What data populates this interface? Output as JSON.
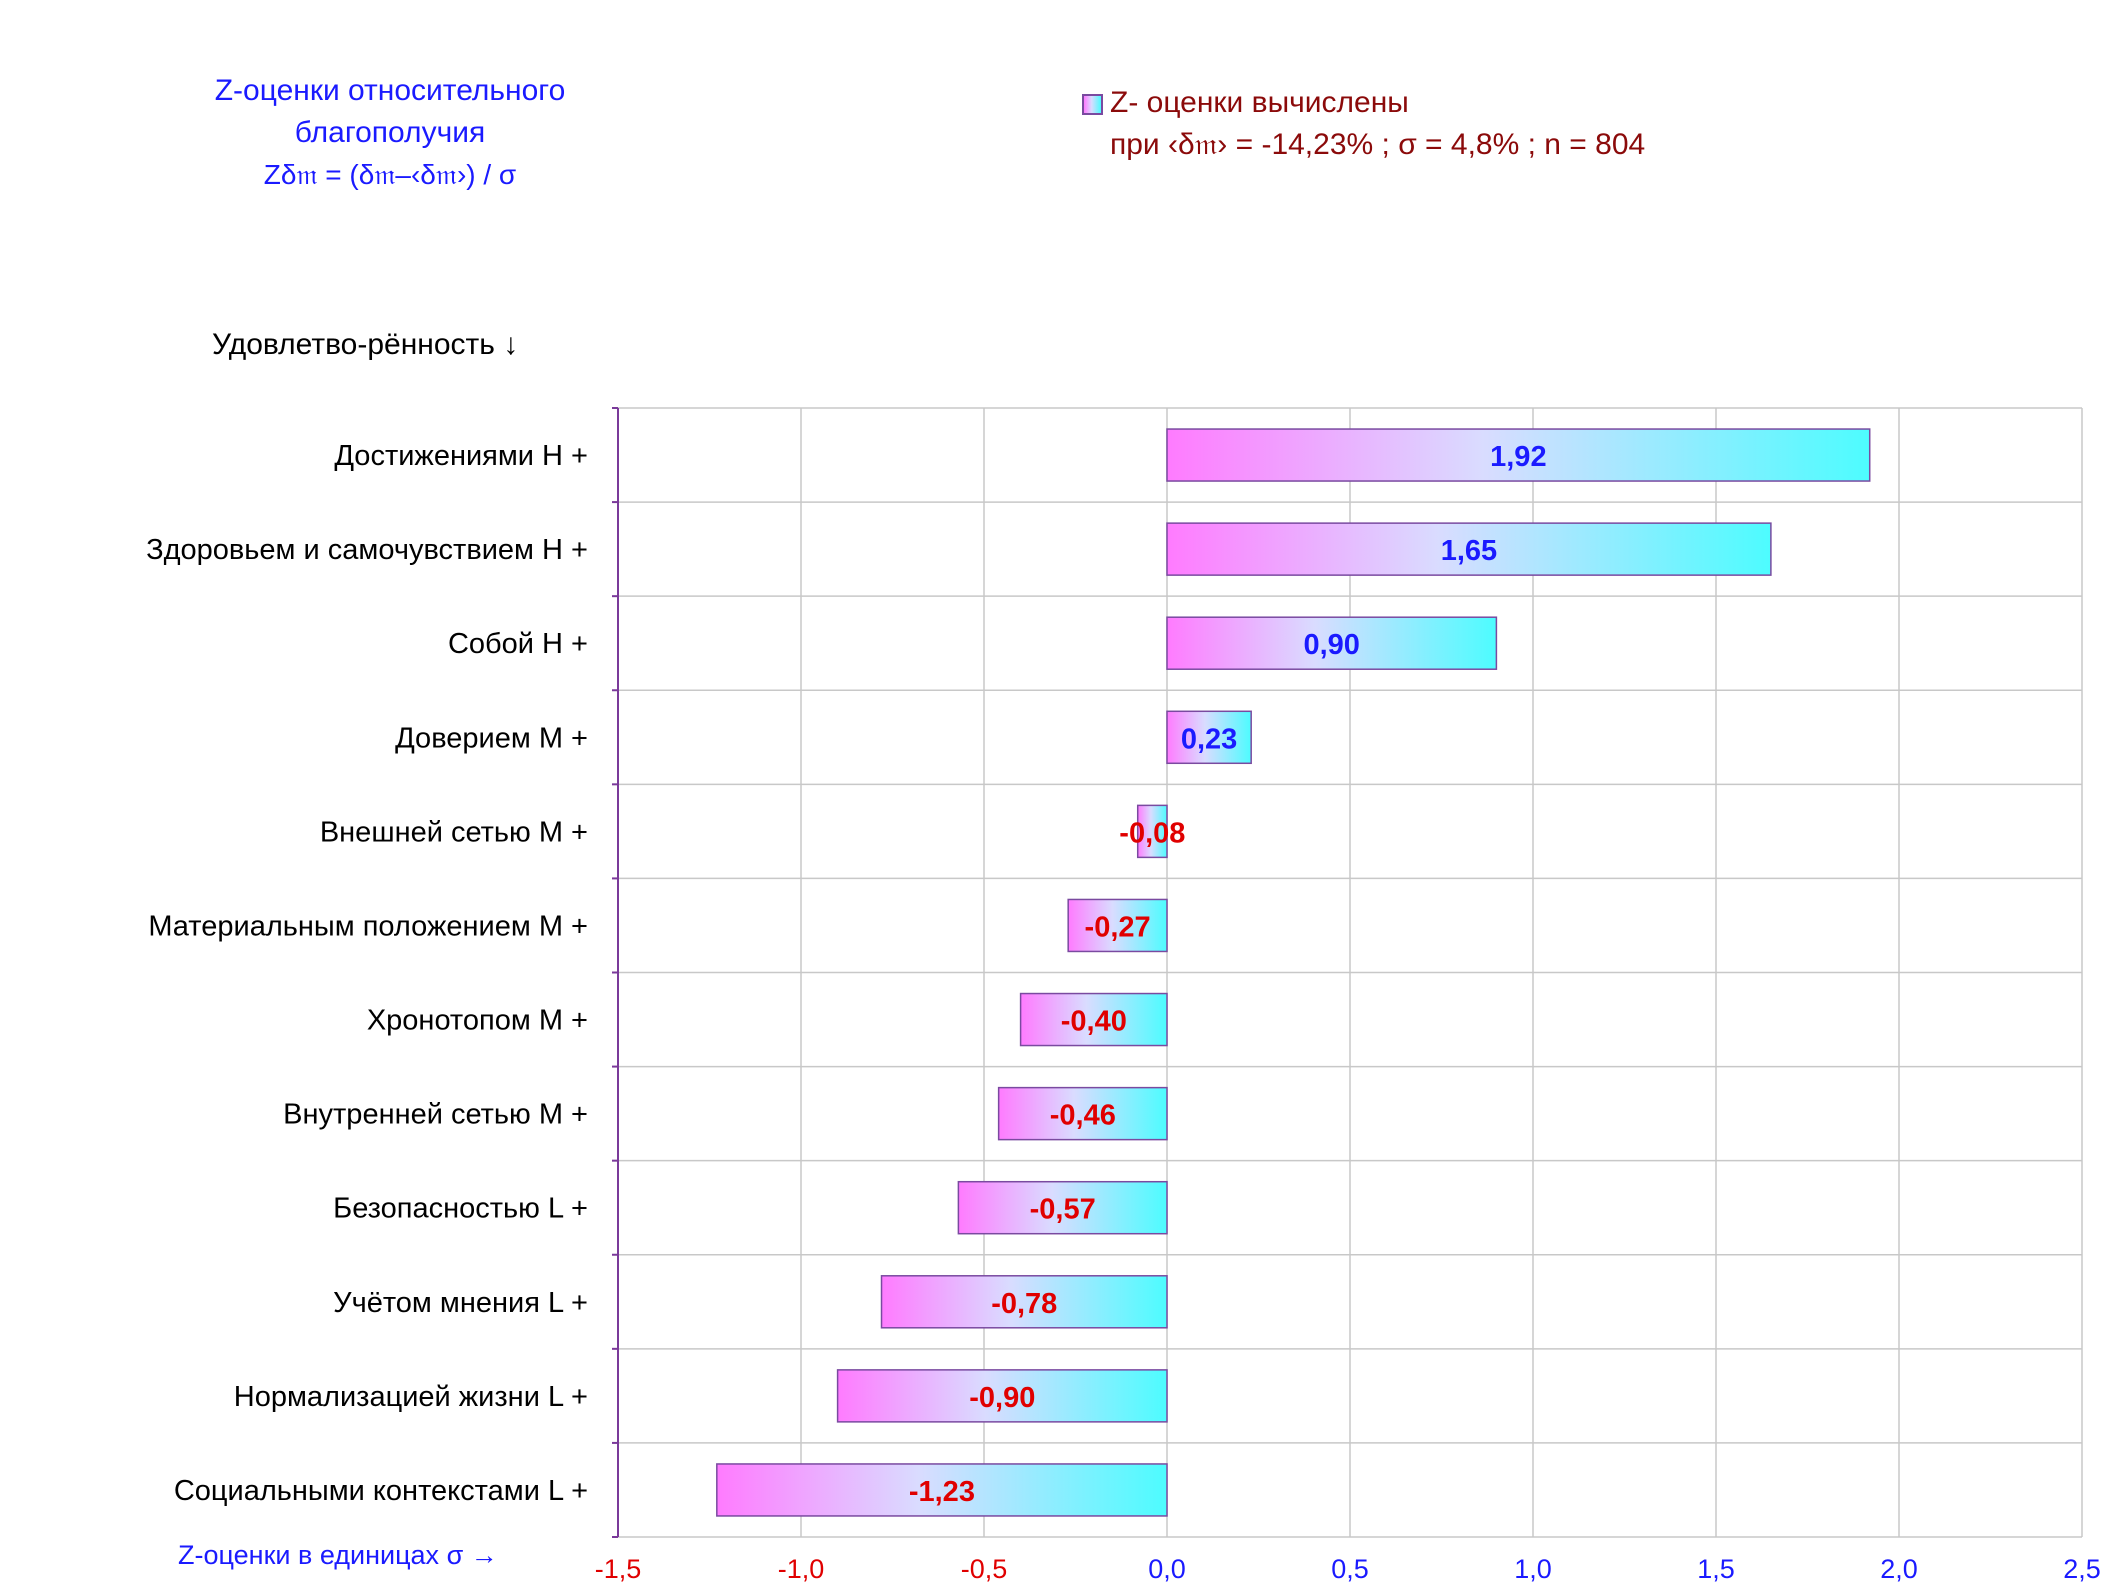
{
  "title": {
    "line1": "Z-оценки  относительного",
    "line2": "благополучия",
    "formula": "Zδ𝔪 = (δ𝔪–‹δ𝔪›) / σ"
  },
  "legend": {
    "line1": "Z- оценки вычислены",
    "line2": "при ‹δ𝔪› = -14,23% ; σ = 4,8% ; n = 804"
  },
  "colors": {
    "gradient_left": "#ff7bff",
    "gradient_mid": "#d9dcff",
    "gradient_right": "#4dfcff",
    "bar_border": "#7a4aa0",
    "positive_label": "#1a1aff",
    "negative_label": "#e00000",
    "grid": "#c8c8c8",
    "axis": "#7a3a9a"
  },
  "chart_data": {
    "type": "bar",
    "orientation": "horizontal",
    "ylabel": "Удовлетво-рённость ↓",
    "xlabel": "Z-оценки в единицах σ →",
    "categories": [
      "Достижениями  H +",
      "Здоровьем и самочувствием  H +",
      "Собой  H +",
      "Доверием  M +",
      "Внешней сетью  M +",
      "Материальным положением  M +",
      "Хронотопом  M +",
      "Внутренней сетью  M +",
      "Безопасностью  L +",
      "Учётом мнения  L +",
      "Нормализацией жизни  L +",
      "Социальными контекстами  L +"
    ],
    "values": [
      1.92,
      1.65,
      0.9,
      0.23,
      -0.08,
      -0.27,
      -0.4,
      -0.46,
      -0.57,
      -0.78,
      -0.9,
      -1.23
    ],
    "value_labels": [
      "1,92",
      "1,65",
      "0,90",
      "0,23",
      "-0,08",
      "-0,27",
      "-0,40",
      "-0,46",
      "-0,57",
      "-0,78",
      "-0,90",
      "-1,23"
    ],
    "xlim": [
      -1.5,
      2.5
    ],
    "x_ticks": [
      -1.5,
      -1.0,
      -0.5,
      0.0,
      0.5,
      1.0,
      1.5,
      2.0,
      2.5
    ],
    "x_tick_labels": [
      "-1,5",
      "-1,0",
      "-0,5",
      "0,0",
      "0,5",
      "1,0",
      "1,5",
      "2,0",
      "2,5"
    ],
    "grid": true
  }
}
